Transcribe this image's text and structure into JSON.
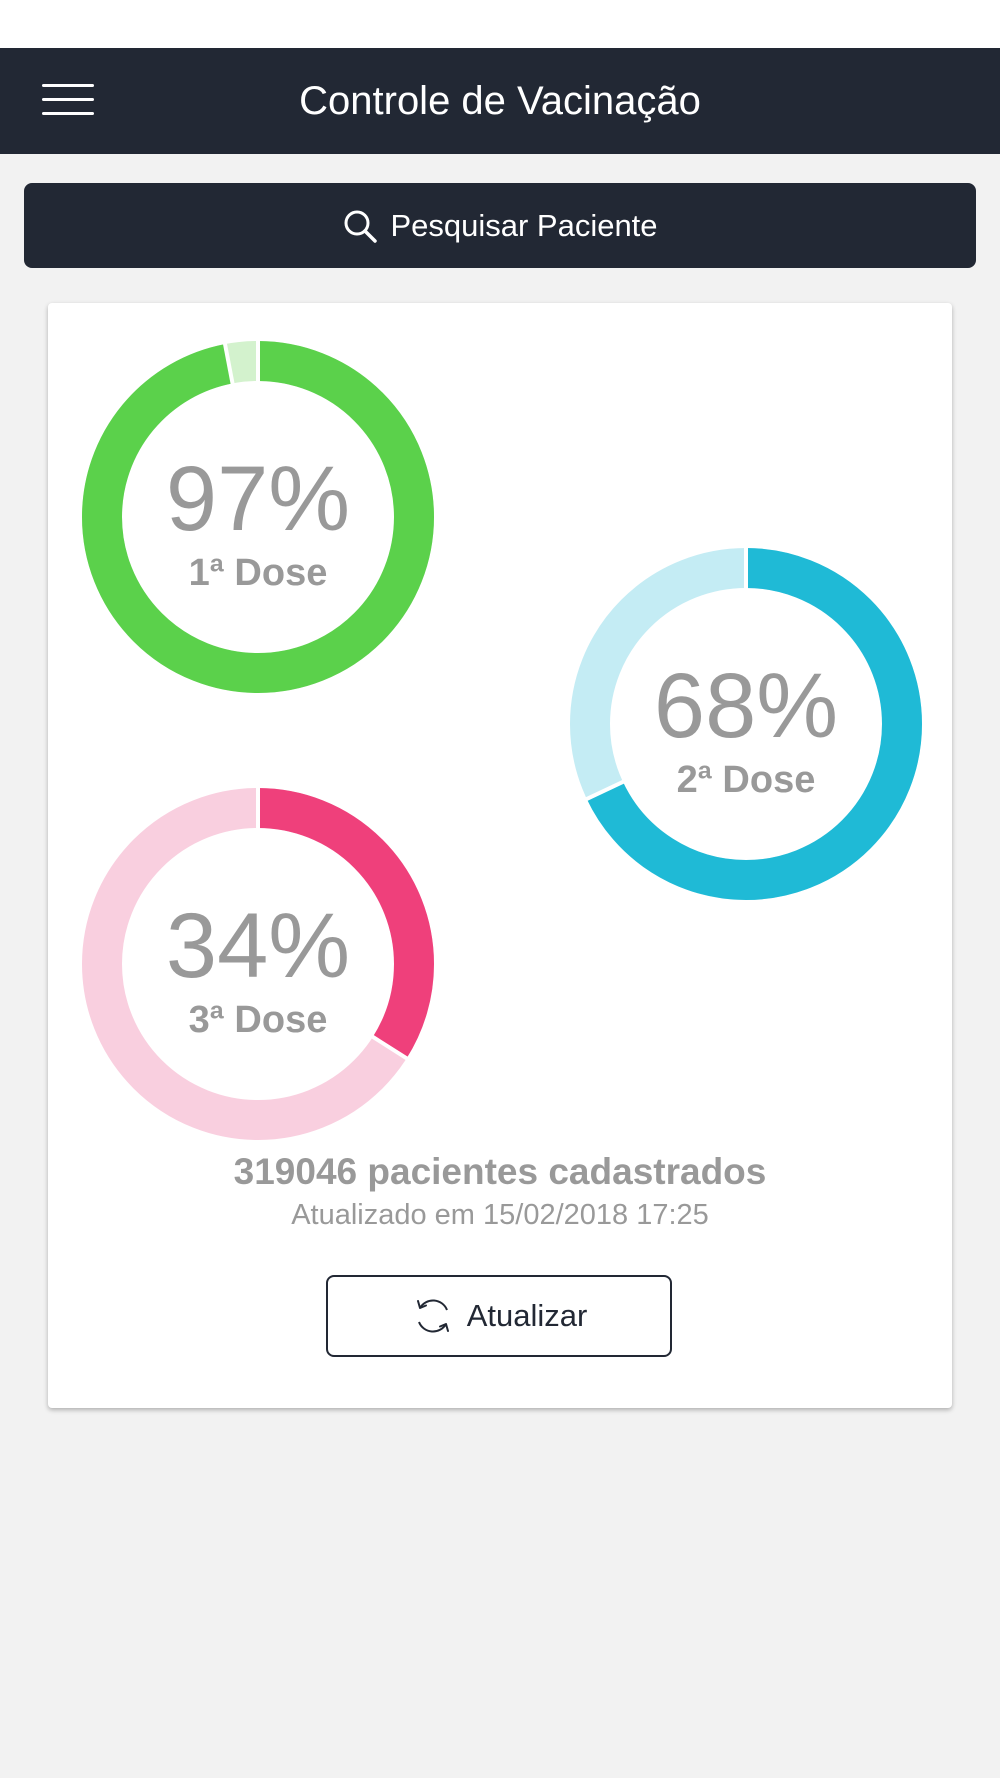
{
  "header": {
    "title": "Controle de Vacinação",
    "menu_icon": "hamburger-menu-icon"
  },
  "search": {
    "label": "Pesquisar Paciente",
    "icon": "search-icon"
  },
  "doses": [
    {
      "percent_label": "97%",
      "label": "1ª Dose",
      "value": 97,
      "color": "#5bd14b",
      "track_color": "#d3f2cd"
    },
    {
      "percent_label": "68%",
      "label": "2ª Dose",
      "value": 68,
      "color": "#1fbad6",
      "track_color": "#c4ecf4"
    },
    {
      "percent_label": "34%",
      "label": "3ª Dose",
      "value": 34,
      "color": "#ef407b",
      "track_color": "#f9cfdf"
    }
  ],
  "summary": {
    "patients": "319046 pacientes cadastrados",
    "updated": "Atualizado em 15/02/2018 17:25"
  },
  "refresh_button": {
    "label": "Atualizar",
    "icon": "refresh-icon"
  },
  "colors": {
    "primary_dark": "#222834",
    "background": "#f2f2f2",
    "text_muted": "#999999"
  }
}
